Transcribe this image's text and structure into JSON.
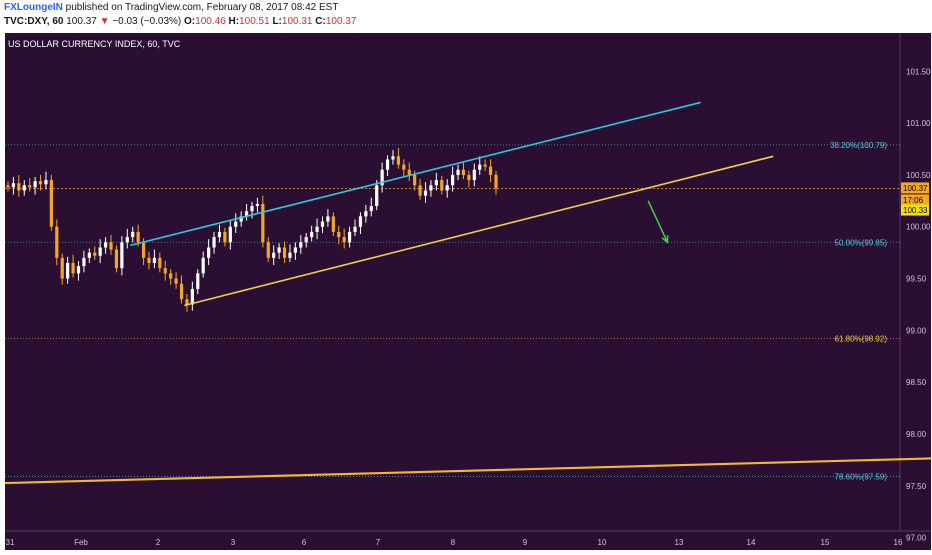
{
  "header": {
    "author": "FXLoungeIN",
    "published": " published on TradingView.com, February 08, 2017 08:42 EST",
    "symbol": "TVC:DXY, 60",
    "last": "100.37",
    "down_arrow": "▼",
    "change": "−0.03 (−0.03%)",
    "o_label": "O:",
    "o_val": "100.46",
    "h_label": "H:",
    "h_val": "100.51",
    "l_label": "L:",
    "l_val": "100.31",
    "c_label": "C:",
    "c_val": "100.37"
  },
  "chart_data": {
    "type": "candlestick",
    "title": "US DOLLAR CURRENCY INDEX, 60, TVC",
    "colors": {
      "background": "#2a0f32",
      "bull_candle": "#ffffff",
      "bear_candle": "#f5a623",
      "upper_channel": "#29c8e6",
      "lower_channel": "#f4d03f",
      "long_trendline": "#f5b731",
      "arrow": "#3ddc4a",
      "fib_cyan": "#4fd1d9",
      "fib_yellow": "#f4d03f"
    },
    "ylim": [
      96.88,
      101.87
    ],
    "y_ticks": [
      "101.50",
      "101.00",
      "100.50",
      "100.00",
      "99.50",
      "99.00",
      "98.50",
      "98.00",
      "97.50",
      "97.00"
    ],
    "x_ticks": [
      "31",
      "Feb",
      "2",
      "3",
      "6",
      "7",
      "8",
      "9",
      "10",
      "13",
      "14",
      "15",
      "16"
    ],
    "price_labels": [
      {
        "text": "100.37",
        "style": "orange"
      },
      {
        "text": "17:06",
        "style": "orange"
      },
      {
        "text": "100.33",
        "style": "yellow"
      }
    ],
    "fib_levels": [
      {
        "text": "38.20%(100.79)",
        "value": 100.79,
        "color": "cyan"
      },
      {
        "text": "50.00%(99.85)",
        "value": 99.85,
        "color": "cyan"
      },
      {
        "text": "61.80%(98.92)",
        "value": 98.92,
        "color": "yellow"
      },
      {
        "text": "78.60%(97.59)",
        "value": 97.59,
        "color": "cyan"
      }
    ],
    "current_price": 100.37,
    "closes": [
      100.38,
      100.42,
      100.35,
      100.4,
      100.38,
      100.44,
      100.41,
      100.45,
      100.0,
      99.7,
      99.5,
      99.65,
      99.55,
      99.62,
      99.7,
      99.75,
      99.72,
      99.8,
      99.85,
      99.78,
      99.6,
      99.85,
      99.9,
      99.95,
      99.85,
      99.7,
      99.65,
      99.7,
      99.6,
      99.55,
      99.5,
      99.45,
      99.3,
      99.25,
      99.4,
      99.55,
      99.7,
      99.8,
      99.9,
      99.95,
      99.85,
      100.0,
      100.05,
      100.1,
      100.15,
      100.2,
      100.22,
      99.85,
      99.7,
      99.75,
      99.8,
      99.7,
      99.75,
      99.8,
      99.85,
      99.9,
      99.95,
      100.0,
      100.05,
      100.1,
      99.95,
      99.9,
      99.85,
      99.95,
      100.0,
      100.1,
      100.15,
      100.2,
      100.4,
      100.55,
      100.65,
      100.68,
      100.6,
      100.55,
      100.5,
      100.4,
      100.3,
      100.35,
      100.4,
      100.45,
      100.35,
      100.4,
      100.5,
      100.55,
      100.5,
      100.45,
      100.55,
      100.6,
      100.58,
      100.5,
      100.37
    ],
    "upper_channel": {
      "from": [
        1.64,
        99.82
      ],
      "to": [
        9.3,
        101.2
      ]
    },
    "lower_channel": {
      "from": [
        2.35,
        99.24
      ],
      "to": [
        10.3,
        100.68
      ]
    },
    "long_trendline": {
      "from": [
        -0.4,
        97.52
      ],
      "to": [
        16.0,
        97.83
      ]
    },
    "projection_arrow": {
      "from": [
        8.6,
        100.25
      ],
      "to": [
        8.85,
        99.85
      ]
    }
  }
}
